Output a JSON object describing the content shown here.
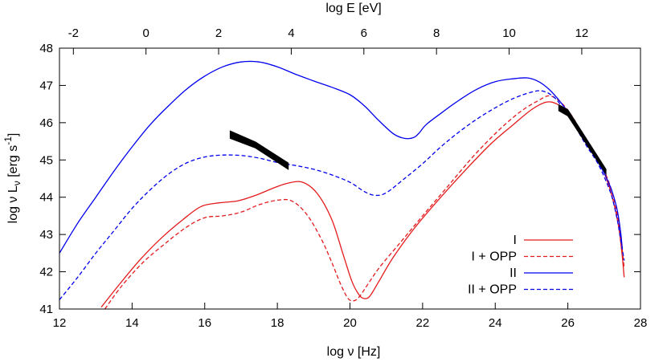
{
  "chart_data": {
    "type": "line",
    "xlabel": "log ν [Hz]",
    "ylabel": "log ν L",
    "ylabel_sub": "ν",
    "ylabel_unit": " [erg s",
    "ylabel_sup": "-1",
    "ylabel_end": "]",
    "x2label": "log E [eV]",
    "xlim": [
      12,
      28
    ],
    "ylim": [
      41,
      48
    ],
    "xticks": [
      "12",
      "14",
      "16",
      "18",
      "20",
      "22",
      "24",
      "26",
      "28"
    ],
    "yticks": [
      "41",
      "42",
      "43",
      "44",
      "45",
      "46",
      "47",
      "48"
    ],
    "x2ticks": [
      "-2",
      "0",
      "2",
      "4",
      "6",
      "8",
      "10",
      "12"
    ],
    "x2tick_values": [
      -2,
      0,
      2,
      4,
      6,
      8,
      10,
      12
    ],
    "legend_position": "bottom-right",
    "series": [
      {
        "name": "I",
        "color": "#e41a1c",
        "dash": "solid",
        "x": [
          13.15,
          13.6,
          14.2,
          14.8,
          15.4,
          15.9,
          16.4,
          16.9,
          17.4,
          17.9,
          18.3,
          18.7,
          19.1,
          19.5,
          19.8,
          20.05,
          20.25,
          20.4,
          20.55,
          20.8,
          21.2,
          21.8,
          22.5,
          23.2,
          23.9,
          24.5,
          25.0,
          25.4,
          25.7,
          26.0,
          26.3,
          26.6,
          26.9,
          27.1,
          27.25,
          27.4,
          27.5,
          27.55
        ],
        "y": [
          41.05,
          41.6,
          42.3,
          42.9,
          43.4,
          43.75,
          43.85,
          43.9,
          44.05,
          44.25,
          44.38,
          44.4,
          44.1,
          43.4,
          42.5,
          41.75,
          41.38,
          41.28,
          41.35,
          41.75,
          42.4,
          43.2,
          44.0,
          44.75,
          45.45,
          45.95,
          46.35,
          46.55,
          46.5,
          46.25,
          45.8,
          45.3,
          44.85,
          44.4,
          43.9,
          43.2,
          42.4,
          41.85
        ]
      },
      {
        "name": "I + OPP",
        "color": "#e41a1c",
        "dash": "dashed",
        "x": [
          13.25,
          13.7,
          14.3,
          14.9,
          15.5,
          16.0,
          16.5,
          17.0,
          17.5,
          18.0,
          18.4,
          18.8,
          19.2,
          19.5,
          19.75,
          19.95,
          20.1,
          20.25,
          20.45,
          20.8,
          21.4,
          22.0,
          22.7,
          23.4,
          24.1,
          24.7,
          25.2,
          25.5,
          25.8,
          26.1,
          26.4,
          26.7,
          27.0,
          27.2,
          27.35,
          27.45,
          27.55
        ],
        "y": [
          41.0,
          41.6,
          42.25,
          42.75,
          43.2,
          43.45,
          43.5,
          43.6,
          43.8,
          43.92,
          43.9,
          43.55,
          42.9,
          42.25,
          41.65,
          41.28,
          41.22,
          41.32,
          41.6,
          42.1,
          42.8,
          43.5,
          44.3,
          45.1,
          45.8,
          46.3,
          46.6,
          46.72,
          46.55,
          46.2,
          45.7,
          45.2,
          44.7,
          44.2,
          43.6,
          43.0,
          42.1
        ]
      },
      {
        "name": "II",
        "color": "#0000ee",
        "dash": "solid",
        "x": [
          12.0,
          12.5,
          13.0,
          13.5,
          14.0,
          14.5,
          15.0,
          15.5,
          16.0,
          16.5,
          17.0,
          17.5,
          18.0,
          18.5,
          19.0,
          19.5,
          20.0,
          20.4,
          20.8,
          21.2,
          21.5,
          21.75,
          21.9,
          22.1,
          22.5,
          23.0,
          23.5,
          24.0,
          24.5,
          24.9,
          25.2,
          25.5,
          25.8,
          26.1,
          26.4,
          26.7,
          27.0,
          27.2,
          27.35,
          27.45,
          27.5
        ],
        "y": [
          42.5,
          43.3,
          44.0,
          44.7,
          45.35,
          45.95,
          46.45,
          46.9,
          47.25,
          47.5,
          47.63,
          47.63,
          47.5,
          47.3,
          47.12,
          46.95,
          46.75,
          46.45,
          46.05,
          45.7,
          45.58,
          45.6,
          45.72,
          45.95,
          46.25,
          46.6,
          46.9,
          47.1,
          47.18,
          47.2,
          47.1,
          46.88,
          46.55,
          46.15,
          45.65,
          45.15,
          44.65,
          44.2,
          43.7,
          43.1,
          42.6
        ]
      },
      {
        "name": "II + OPP",
        "color": "#0000ee",
        "dash": "dashed",
        "x": [
          12.0,
          12.5,
          13.0,
          13.5,
          14.0,
          14.5,
          15.0,
          15.5,
          16.0,
          16.5,
          17.0,
          17.5,
          18.0,
          18.5,
          19.0,
          19.5,
          20.0,
          20.4,
          20.7,
          21.0,
          21.5,
          22.0,
          22.5,
          23.0,
          23.5,
          24.0,
          24.5,
          25.0,
          25.3,
          25.6,
          25.9,
          26.2,
          26.5,
          26.8,
          27.0,
          27.2,
          27.35,
          27.45,
          27.55
        ],
        "y": [
          41.25,
          41.85,
          42.5,
          43.1,
          43.7,
          44.2,
          44.62,
          44.92,
          45.08,
          45.13,
          45.12,
          45.05,
          44.93,
          44.85,
          44.75,
          44.6,
          44.4,
          44.15,
          44.05,
          44.12,
          44.5,
          44.9,
          45.35,
          45.75,
          46.1,
          46.4,
          46.65,
          46.82,
          46.85,
          46.7,
          46.35,
          45.9,
          45.4,
          44.95,
          44.55,
          44.05,
          43.45,
          42.9,
          42.3
        ]
      }
    ],
    "data_bands": [
      {
        "x": [
          16.7,
          17.4,
          18.3
        ],
        "y_top": [
          45.78,
          45.48,
          44.92
        ],
        "y_bottom": [
          45.58,
          45.32,
          44.75
        ]
      },
      {
        "x": [
          25.75,
          26.0,
          27.05
        ],
        "y_top": [
          46.48,
          46.35,
          44.75
        ],
        "y_bottom": [
          46.32,
          46.18,
          44.62
        ]
      }
    ]
  }
}
